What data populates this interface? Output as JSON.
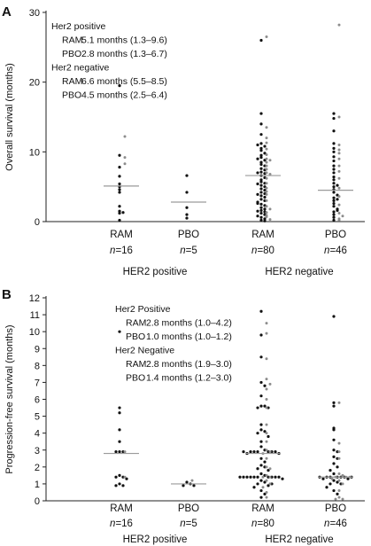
{
  "colors": {
    "black_point": "#111111",
    "grey_point": "#8c8c8c",
    "median_line": "#9a9a9a",
    "axis": "#222222"
  },
  "chart_data": [
    {
      "panel": "A",
      "type": "scatter",
      "ylabel": "Overall survival (months)",
      "ylim": [
        0,
        30
      ],
      "yticks": [
        0,
        10,
        20,
        30
      ],
      "categories": [
        "RAM",
        "PBO",
        "RAM",
        "PBO"
      ],
      "n_labels": [
        "=16",
        "=5",
        "=80",
        "=46"
      ],
      "group_labels": [
        "HER2 positive",
        "HER2 negative"
      ],
      "medians": [
        5.1,
        2.8,
        6.6,
        4.5
      ],
      "legend": [
        {
          "header": "Her2 positive",
          "rows": [
            {
              "arm": "RAM",
              "text": "5.1 months (1.3–9.6)"
            },
            {
              "arm": "PBO",
              "text": "2.8 months (1.3–6.7)"
            }
          ]
        },
        {
          "header": "Her2 negative",
          "rows": [
            {
              "arm": "RAM",
              "text": "6.6 months (5.5–8.5)"
            },
            {
              "arm": "PBO",
              "text": "4.5 months (2.5–6.4)"
            }
          ]
        }
      ],
      "groups": [
        {
          "black": [
            19.5,
            9.5,
            7.8,
            6.5,
            5.4,
            5.0,
            4.6,
            4.2,
            2.2,
            1.5,
            1.3,
            1.2,
            0.2
          ],
          "grey": [
            12.2,
            9.2,
            8.3
          ]
        },
        {
          "black": [
            6.6,
            4.2,
            2.0,
            1.0,
            0.5
          ],
          "grey": []
        },
        {
          "black": [
            26.0,
            15.5,
            14.0,
            12.5,
            11.2,
            10.8,
            10.5,
            10.2,
            9.8,
            9.5,
            9.2,
            8.8,
            8.5,
            8.2,
            8.0,
            7.6,
            7.4,
            7.1,
            6.9,
            6.6,
            6.3,
            6.0,
            5.7,
            5.5,
            5.2,
            5.0,
            4.7,
            4.5,
            4.2,
            4.0,
            3.7,
            3.5,
            3.2,
            3.0,
            2.8,
            2.5,
            2.3,
            2.0,
            1.8,
            1.6,
            1.4,
            1.2,
            1.0,
            0.8,
            0.6,
            0.4,
            0.2,
            0.1,
            11.0,
            9.0,
            7.0,
            5.4,
            3.9,
            2.6,
            1.5
          ],
          "grey": [
            26.5,
            13.5,
            12.0,
            11.3,
            10.4,
            9.6,
            9.0,
            8.5,
            8.0,
            7.5,
            7.0,
            6.2,
            5.5,
            4.8,
            3.9,
            3.0,
            2.2,
            1.3,
            0.7,
            0.3,
            8.8,
            6.8,
            4.3,
            1.8,
            0.9
          ]
        },
        {
          "black": [
            15.5,
            14.8,
            13.0,
            11.2,
            10.5,
            10.0,
            9.3,
            8.7,
            8.0,
            7.5,
            7.0,
            6.4,
            6.0,
            5.5,
            5.0,
            4.6,
            4.2,
            3.8,
            3.4,
            3.0,
            2.6,
            2.2,
            1.8,
            1.4,
            1.0,
            0.6,
            0.2,
            5.2,
            3.2,
            1.6
          ],
          "grey": [
            28.2,
            15.0,
            11.0,
            10.3,
            9.8,
            9.0,
            8.0,
            7.2,
            6.2,
            4.8,
            3.6,
            2.4,
            1.2,
            0.8,
            0.4,
            0.2
          ]
        }
      ]
    },
    {
      "panel": "B",
      "type": "scatter",
      "ylabel": "Progression-free survival (months)",
      "ylim": [
        0,
        12
      ],
      "yticks": [
        0,
        1,
        2,
        3,
        4,
        5,
        6,
        7,
        8,
        9,
        10,
        11,
        12
      ],
      "categories": [
        "RAM",
        "PBO",
        "RAM",
        "PBO"
      ],
      "n_labels": [
        "=16",
        "=5",
        "=80",
        "=46"
      ],
      "group_labels": [
        "HER2 positive",
        "HER2 negative"
      ],
      "medians": [
        2.8,
        1.0,
        2.8,
        1.4
      ],
      "legend": [
        {
          "header": "Her2 Positive",
          "rows": [
            {
              "arm": "RAM",
              "text": "2.8 months (1.0–4.2)"
            },
            {
              "arm": "PBO",
              "text": "1.0 months (1.0–1.2)"
            }
          ]
        },
        {
          "header": "Her2 Negative",
          "rows": [
            {
              "arm": "RAM",
              "text": "2.8 months (1.9–3.0)"
            },
            {
              "arm": "PBO",
              "text": "1.4 months (1.2–3.0)"
            }
          ]
        }
      ],
      "groups": [
        {
          "black": [
            10.0,
            5.5,
            5.2,
            4.2,
            3.5,
            2.9,
            2.9,
            2.9,
            1.5,
            1.4,
            1.4,
            1.3,
            1.0,
            0.9,
            0.9
          ],
          "grey": [
            2.9,
            1.4
          ]
        },
        {
          "black": [
            1.1,
            1.0,
            0.9,
            0.9
          ],
          "grey": [
            1.2
          ]
        },
        {
          "black": [
            11.2,
            9.8,
            8.5,
            7.0,
            6.8,
            6.2,
            5.6,
            5.6,
            5.5,
            5.5,
            4.5,
            4.2,
            4.1,
            4.0,
            3.8,
            3.5,
            3.2,
            3.0,
            2.9,
            2.9,
            2.9,
            2.9,
            2.9,
            2.9,
            2.8,
            2.8,
            2.5,
            2.3,
            2.1,
            2.0,
            1.9,
            1.8,
            1.6,
            1.5,
            1.4,
            1.4,
            1.4,
            1.4,
            1.4,
            1.4,
            1.4,
            1.4,
            1.4,
            1.3,
            1.2,
            1.1,
            1.0,
            0.9,
            0.8,
            0.6,
            0.4,
            0.2,
            2.9,
            1.4,
            1.0
          ],
          "grey": [
            10.5,
            9.9,
            8.4,
            7.2,
            6.9,
            6.6,
            6.0,
            5.5,
            4.5,
            4.0,
            3.5,
            3.0,
            2.9,
            2.8,
            2.0,
            1.5,
            1.4,
            1.2,
            1.0,
            0.8,
            0.5,
            0.2,
            2.5,
            1.9,
            1.4
          ]
        },
        {
          "black": [
            10.9,
            5.8,
            5.6,
            4.3,
            4.2,
            3.6,
            3.0,
            2.9,
            2.6,
            2.5,
            2.2,
            2.0,
            1.8,
            1.6,
            1.4,
            1.4,
            1.4,
            1.4,
            1.4,
            1.3,
            1.3,
            1.2,
            1.1,
            1.0,
            1.0,
            0.8,
            0.6,
            0.4,
            1.4,
            1.4
          ],
          "grey": [
            5.8,
            3.4,
            2.9,
            2.5,
            1.6,
            1.5,
            1.4,
            1.4,
            1.3,
            1.2,
            1.0,
            0.6,
            0.2,
            0.1,
            0.1,
            1.4
          ]
        }
      ]
    }
  ]
}
